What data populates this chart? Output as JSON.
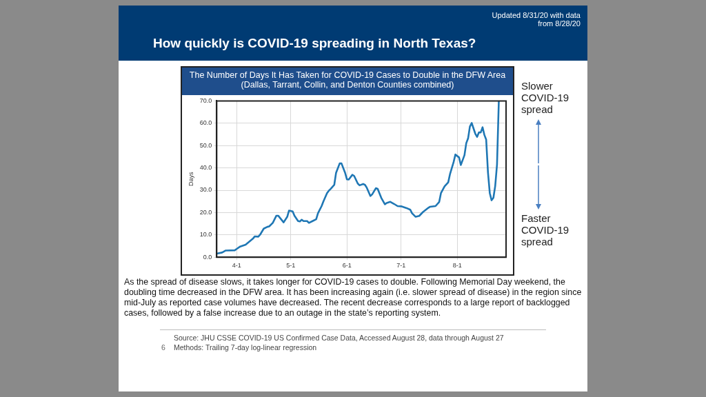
{
  "chart_data": {
    "type": "line",
    "title": "How quickly is COVID-19 spreading in North Texas?",
    "subtitle": "The Number of Days It Has Taken for COVID-19 Cases to Double in the DFW Area (Dallas, Tarrant, Collin, and Denton Counties combined)",
    "ylabel": "Days",
    "x": [
      "--03-21",
      "--03-24",
      "--03-26",
      "--03-31",
      "--04-01",
      "--04-03",
      "--04-06",
      "--04-10",
      "--04-11",
      "--04-13",
      "--04-14",
      "--04-16",
      "--04-18",
      "--04-19",
      "--04-21",
      "--04-23",
      "--04-24",
      "--04-27",
      "--04-29",
      "--04-30",
      "--05-02",
      "--05-03",
      "--05-05",
      "--05-06",
      "--05-07",
      "--05-08",
      "--05-10",
      "--05-11",
      "--05-13",
      "--05-15",
      "--05-16",
      "--05-18",
      "--05-19",
      "--05-21",
      "--05-22",
      "--05-23",
      "--05-25",
      "--05-26",
      "--05-28",
      "--05-29",
      "--05-31",
      "--06-01",
      "--06-02",
      "--06-04",
      "--06-05",
      "--06-07",
      "--06-08",
      "--06-10",
      "--06-11",
      "--06-12",
      "--06-14",
      "--06-15",
      "--06-17",
      "--06-18",
      "--06-20",
      "--06-22",
      "--06-23",
      "--06-25",
      "--06-27",
      "--06-29",
      "--07-01",
      "--07-04",
      "--07-06",
      "--07-07",
      "--07-09",
      "--07-11",
      "--07-13",
      "--07-16",
      "--07-17",
      "--07-20",
      "--07-22",
      "--07-23",
      "--07-25",
      "--07-27",
      "--07-28",
      "--07-30",
      "--07-31",
      "--08-02",
      "--08-03",
      "--08-05",
      "--08-06",
      "--08-07",
      "--08-08",
      "--08-09",
      "--08-11",
      "--08-12",
      "--08-13",
      "--08-14",
      "--08-15",
      "--08-16",
      "--08-17",
      "--08-18",
      "--08-19",
      "--08-20",
      "--08-21",
      "--08-22",
      "--08-23",
      "--08-24"
    ],
    "series": [
      {
        "color": "#1f77b4",
        "values": [
          1.6,
          2.1,
          3.0,
          3.1,
          3.7,
          4.8,
          5.6,
          8.3,
          9.3,
          9.2,
          10.1,
          12.8,
          13.6,
          13.8,
          15.4,
          18.6,
          18.6,
          15.6,
          18.1,
          20.9,
          20.5,
          18.6,
          16.2,
          16.0,
          16.8,
          16.2,
          16.2,
          15.4,
          16.2,
          17.0,
          19.7,
          22.9,
          25.0,
          28.7,
          29.8,
          30.6,
          32.4,
          37.8,
          42.0,
          42.0,
          37.8,
          34.9,
          34.8,
          36.9,
          36.4,
          33.0,
          32.2,
          32.8,
          32.4,
          31.1,
          27.4,
          28.2,
          30.9,
          30.6,
          26.6,
          23.7,
          24.3,
          24.8,
          23.9,
          22.9,
          22.8,
          22.0,
          21.3,
          19.7,
          18.1,
          18.5,
          20.2,
          22.1,
          22.6,
          22.9,
          24.7,
          28.7,
          31.7,
          33.5,
          37.2,
          42.6,
          46.0,
          44.7,
          41.3,
          45.7,
          51.1,
          53.2,
          58.5,
          60.1,
          55.3,
          53.9,
          55.9,
          55.9,
          58.2,
          54.8,
          52.7,
          38.0,
          28.7,
          25.5,
          26.6,
          31.9,
          41.5,
          70.0
        ]
      }
    ],
    "xlim": [
      "--03-21",
      "--08-28"
    ],
    "xticks": [
      {
        "value": "--04-01",
        "label": "4-1"
      },
      {
        "value": "--05-01",
        "label": "5-1"
      },
      {
        "value": "--06-01",
        "label": "6-1"
      },
      {
        "value": "--07-01",
        "label": "7-1"
      },
      {
        "value": "--08-01",
        "label": "8-1"
      }
    ],
    "ylim": [
      0,
      70
    ],
    "yticks": [
      {
        "value": 0,
        "label": "0.0"
      },
      {
        "value": 10,
        "label": "10.0"
      },
      {
        "value": 20,
        "label": "20.0"
      },
      {
        "value": 30,
        "label": "30.0"
      },
      {
        "value": 40,
        "label": "40.0"
      },
      {
        "value": 50,
        "label": "50.0"
      },
      {
        "value": 60,
        "label": "60.0"
      },
      {
        "value": 70,
        "label": "70.0"
      }
    ],
    "grid": true,
    "legend": false,
    "marker": "none",
    "line_style": "solid",
    "annotations": [
      "Updated 8/31/20 with data from 8/28/20",
      "Slower COVID-19 spread",
      "Faster COVID-19 spread",
      "As the spread of disease slows, it takes longer for COVID-19 cases to double. Following Memorial Day weekend, the doubling time decreased in the DFW area. It has been increasing again (i.e. slower spread of disease) in the region since mid-July as reported case volumes have decreased. The recent decrease corresponds to a large report of backlogged cases, followed by a false increase due to an outage in the state’s reporting system.",
      "Source: JHU CSSE COVID-19 US Confirmed Case Data, Accessed August 28, data through August 27",
      "Methods: Trailing 7-day log-linear regression",
      "6"
    ]
  }
}
